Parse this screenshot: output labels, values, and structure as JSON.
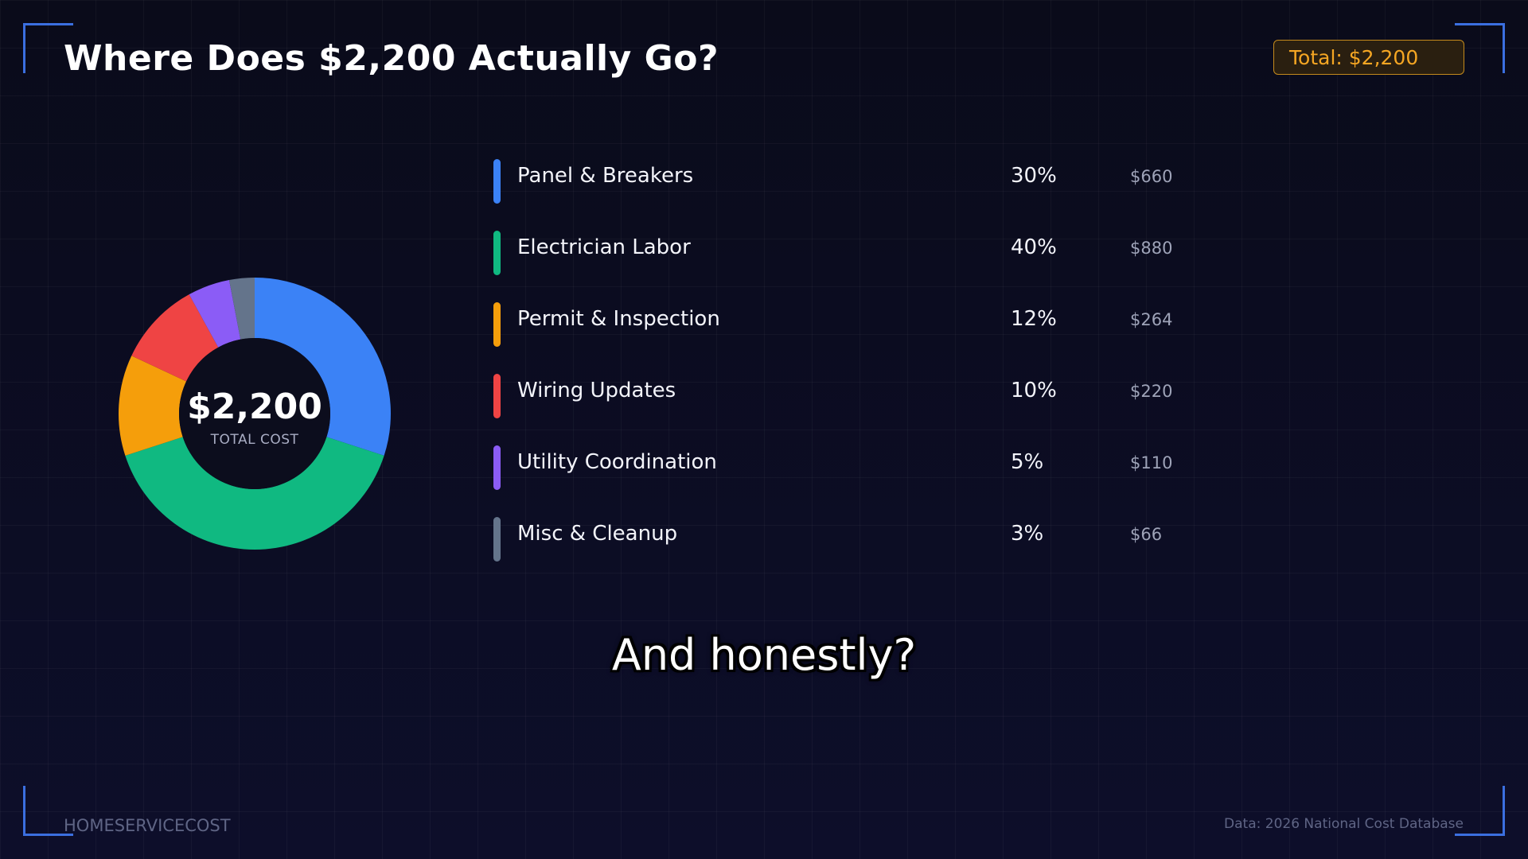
{
  "header": {
    "title": "Where Does $2,200 Actually Go?",
    "badge": "Total: $2,200"
  },
  "donut": {
    "center_value": "$2,200",
    "center_label": "TOTAL COST"
  },
  "subtitle": "And honestly?",
  "footer": {
    "brand": "HOMESERVICECOST",
    "source": "Data: 2026 National Cost Database"
  },
  "chart_data": {
    "type": "pie",
    "title": "Where Does $2,200 Actually Go?",
    "total": 2200,
    "categories": [
      "Panel & Breakers",
      "Electrician Labor",
      "Permit & Inspection",
      "Wiring Updates",
      "Utility Coordination",
      "Misc & Cleanup"
    ],
    "values": [
      660,
      880,
      264,
      220,
      110,
      66
    ],
    "percent_labels": [
      "30%",
      "40%",
      "12%",
      "10%",
      "5%",
      "3%"
    ],
    "amount_labels": [
      "$660",
      "$880",
      "$264",
      "$220",
      "$110",
      "$66"
    ],
    "colors": [
      "#3b82f6",
      "#10b981",
      "#f59e0b",
      "#ef4444",
      "#8b5cf6",
      "#64748b"
    ],
    "legend_position": "right"
  }
}
